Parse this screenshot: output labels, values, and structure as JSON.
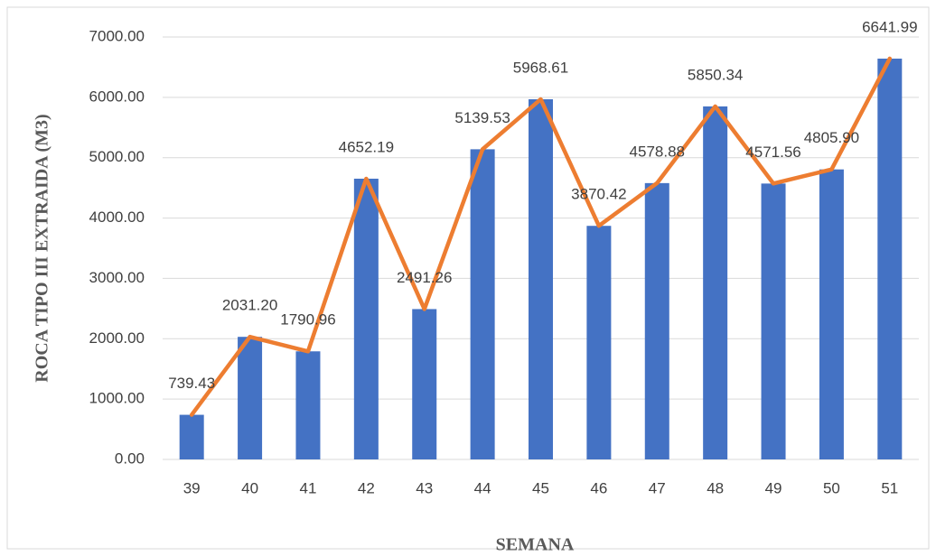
{
  "chart_data": {
    "type": "bar",
    "x_label": "SEMANA",
    "y_label": "ROCA TIPO III EXTRAIDA (M3)",
    "categories": [
      "39",
      "40",
      "41",
      "42",
      "43",
      "44",
      "45",
      "46",
      "47",
      "48",
      "49",
      "50",
      "51"
    ],
    "series": [
      {
        "type": "bar",
        "color": "#4472c4",
        "values": [
          739.43,
          2031.2,
          1790.96,
          4652.19,
          2491.26,
          5139.53,
          5968.61,
          3870.42,
          4578.88,
          5850.34,
          4571.56,
          4805.9,
          6641.99
        ],
        "value_labels": [
          "739.43",
          "2031.20",
          "1790.96",
          "4652.19",
          "2491.26",
          "5139.53",
          "5968.61",
          "3870.42",
          "4578.88",
          "5850.34",
          "4571.56",
          "4805.90",
          "6641.99"
        ]
      },
      {
        "type": "line",
        "color": "#ed7d31",
        "values": [
          739.43,
          2031.2,
          1790.96,
          4652.19,
          2491.26,
          5139.53,
          5968.61,
          3870.42,
          4578.88,
          5850.34,
          4571.56,
          4805.9,
          6641.99
        ]
      }
    ],
    "ylim": [
      0,
      7000
    ],
    "yticks": [
      {
        "value": 0,
        "label": "0.00"
      },
      {
        "value": 1000,
        "label": "1000.00"
      },
      {
        "value": 2000,
        "label": "2000.00"
      },
      {
        "value": 3000,
        "label": "3000.00"
      },
      {
        "value": 4000,
        "label": "4000.00"
      },
      {
        "value": 5000,
        "label": "5000.00"
      },
      {
        "value": 6000,
        "label": "6000.00"
      },
      {
        "value": 7000,
        "label": "7000.00"
      }
    ],
    "grid": true
  }
}
